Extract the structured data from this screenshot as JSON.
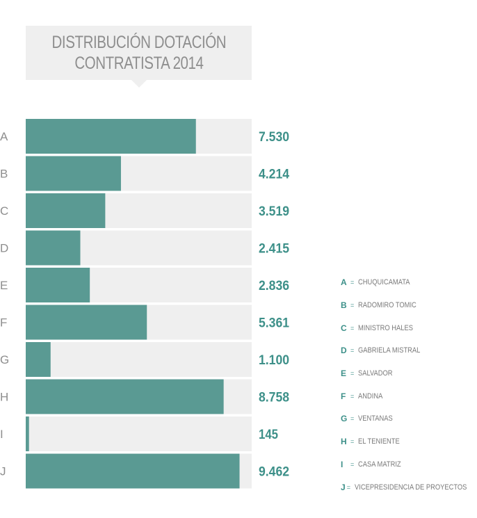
{
  "title_lines": [
    "DISTRIBUCIÓN DOTACIÓN",
    "CONTRATISTA 2014"
  ],
  "colors": {
    "bar": "#5a9a93",
    "track": "#efefef",
    "value_text": "#3d9089",
    "category_text": "#8e8e8e"
  },
  "chart_data": {
    "type": "bar",
    "orientation": "horizontal",
    "title": "DISTRIBUCIÓN DOTACIÓN CONTRATISTA 2014",
    "categories": [
      "A",
      "B",
      "C",
      "D",
      "E",
      "F",
      "G",
      "H",
      "I",
      "J"
    ],
    "values": [
      7530,
      4214,
      3519,
      2415,
      2836,
      5361,
      1100,
      8758,
      145,
      9462
    ],
    "value_labels": [
      "7.530",
      "4.214",
      "3.519",
      "2.415",
      "2.836",
      "5.361",
      "1.100",
      "8.758",
      "145",
      "9.462"
    ],
    "xlim": [
      0,
      10000
    ],
    "grid": false
  },
  "legend": {
    "separator": "=",
    "items": [
      {
        "key": "A",
        "name": "CHUQUICAMATA"
      },
      {
        "key": "B",
        "name": "RADOMIRO TOMIC"
      },
      {
        "key": "C",
        "name": "MINISTRO HALES"
      },
      {
        "key": "D",
        "name": "GABRIELA MISTRAL"
      },
      {
        "key": "E",
        "name": "SALVADOR"
      },
      {
        "key": "F",
        "name": "ANDINA"
      },
      {
        "key": "G",
        "name": "VENTANAS"
      },
      {
        "key": "H",
        "name": "EL TENIENTE"
      },
      {
        "key": "I",
        "name": "CASA MATRIZ"
      },
      {
        "key": "J",
        "name": "VICEPRESIDENCIA DE PROYECTOS"
      }
    ]
  }
}
